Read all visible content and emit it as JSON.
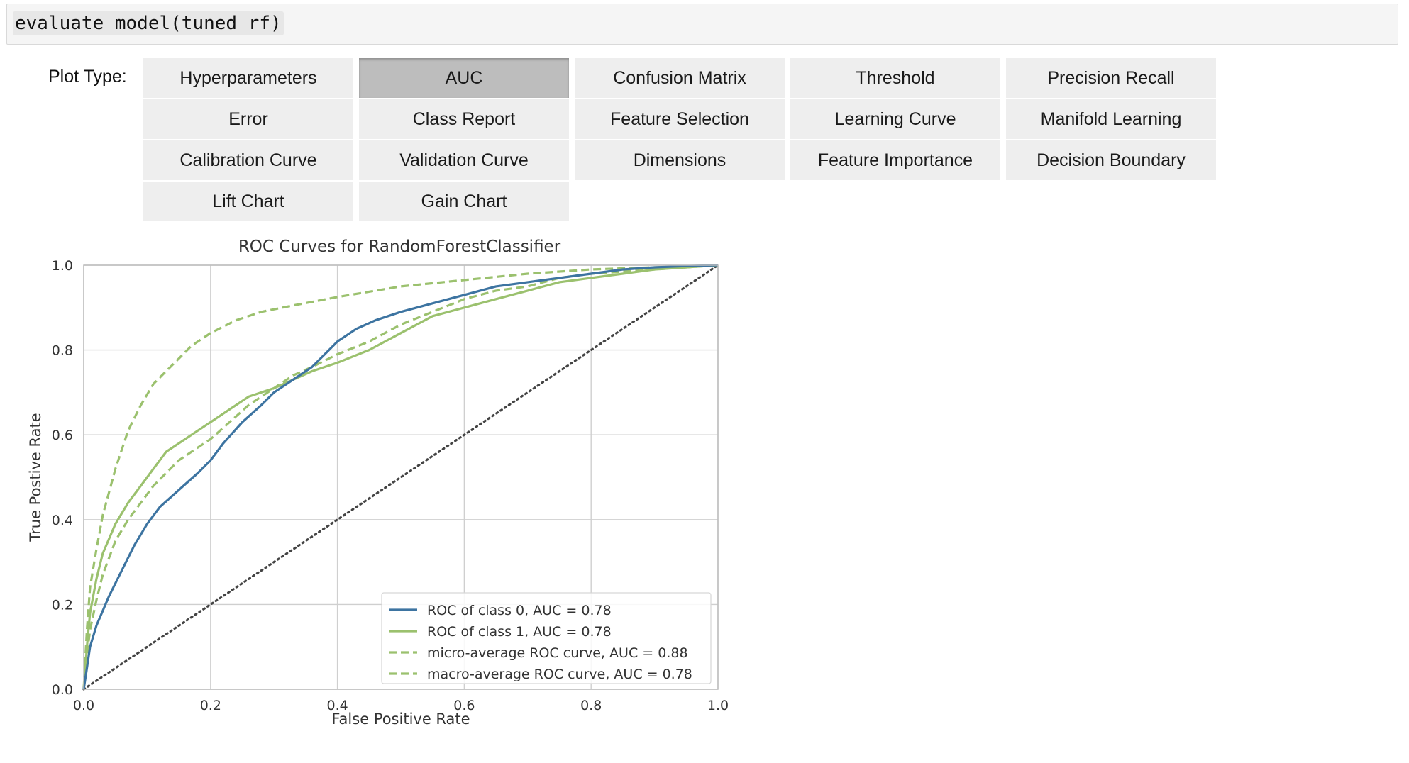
{
  "code_cell": {
    "code": "evaluate_model(tuned_rf)"
  },
  "widget": {
    "label": "Plot Type:",
    "buttons": [
      "Hyperparameters",
      "AUC",
      "Confusion Matrix",
      "Threshold",
      "Precision Recall",
      "Error",
      "Class Report",
      "Feature Selection",
      "Learning Curve",
      "Manifold Learning",
      "Calibration Curve",
      "Validation Curve",
      "Dimensions",
      "Feature Importance",
      "Decision Boundary",
      "Lift Chart",
      "Gain Chart"
    ],
    "active": "AUC"
  },
  "colors": {
    "blue": "#3d74a1",
    "green": "#9bc16e",
    "diag": "#444444",
    "grid": "#cfcfcf"
  },
  "chart_data": {
    "type": "line",
    "title": "ROC Curves for RandomForestClassifier",
    "xlabel": "False Positive Rate",
    "ylabel": "True Postive Rate",
    "xlim": [
      0.0,
      1.0
    ],
    "ylim": [
      0.0,
      1.0
    ],
    "xticks": [
      "0.0",
      "0.2",
      "0.4",
      "0.6",
      "0.8",
      "1.0"
    ],
    "yticks": [
      "0.0",
      "0.2",
      "0.4",
      "0.6",
      "0.8",
      "1.0"
    ],
    "grid": true,
    "legend_position": "lower right",
    "series": [
      {
        "name": "ROC of class 0, AUC = 0.78",
        "color": "#3d74a1",
        "style": "solid",
        "x": [
          0.0,
          0.005,
          0.01,
          0.02,
          0.04,
          0.06,
          0.08,
          0.1,
          0.12,
          0.15,
          0.18,
          0.2,
          0.22,
          0.25,
          0.28,
          0.3,
          0.33,
          0.36,
          0.38,
          0.4,
          0.43,
          0.46,
          0.5,
          0.55,
          0.6,
          0.65,
          0.7,
          0.75,
          0.8,
          0.85,
          0.9,
          0.95,
          1.0
        ],
        "y": [
          0.0,
          0.05,
          0.1,
          0.15,
          0.22,
          0.28,
          0.34,
          0.39,
          0.43,
          0.47,
          0.51,
          0.54,
          0.58,
          0.63,
          0.67,
          0.7,
          0.73,
          0.76,
          0.79,
          0.82,
          0.85,
          0.87,
          0.89,
          0.91,
          0.93,
          0.95,
          0.96,
          0.97,
          0.98,
          0.99,
          0.995,
          0.998,
          1.0
        ]
      },
      {
        "name": "ROC of class 1, AUC = 0.78",
        "color": "#9bc16e",
        "style": "solid",
        "x": [
          0.0,
          0.005,
          0.01,
          0.02,
          0.03,
          0.05,
          0.07,
          0.09,
          0.11,
          0.13,
          0.15,
          0.18,
          0.2,
          0.23,
          0.26,
          0.3,
          0.33,
          0.36,
          0.4,
          0.45,
          0.5,
          0.55,
          0.6,
          0.65,
          0.7,
          0.75,
          0.8,
          0.85,
          0.9,
          0.95,
          1.0
        ],
        "y": [
          0.0,
          0.1,
          0.18,
          0.26,
          0.32,
          0.39,
          0.44,
          0.48,
          0.52,
          0.56,
          0.58,
          0.61,
          0.63,
          0.66,
          0.69,
          0.71,
          0.73,
          0.75,
          0.77,
          0.8,
          0.84,
          0.88,
          0.9,
          0.92,
          0.94,
          0.96,
          0.97,
          0.98,
          0.99,
          0.995,
          1.0
        ]
      },
      {
        "name": "micro-average ROC curve, AUC = 0.88",
        "color": "#9bc16e",
        "style": "dashed",
        "x": [
          0.0,
          0.005,
          0.01,
          0.02,
          0.03,
          0.05,
          0.07,
          0.09,
          0.11,
          0.13,
          0.15,
          0.17,
          0.2,
          0.24,
          0.28,
          0.33,
          0.4,
          0.5,
          0.6,
          0.7,
          0.8,
          0.9,
          1.0
        ],
        "y": [
          0.0,
          0.14,
          0.24,
          0.33,
          0.41,
          0.52,
          0.61,
          0.67,
          0.72,
          0.75,
          0.78,
          0.81,
          0.84,
          0.87,
          0.89,
          0.905,
          0.925,
          0.95,
          0.965,
          0.98,
          0.99,
          0.995,
          1.0
        ]
      },
      {
        "name": "macro-average ROC curve, AUC = 0.78",
        "color": "#9bc16e",
        "style": "dashed",
        "x": [
          0.0,
          0.005,
          0.01,
          0.02,
          0.03,
          0.05,
          0.07,
          0.09,
          0.11,
          0.13,
          0.15,
          0.18,
          0.2,
          0.23,
          0.26,
          0.3,
          0.33,
          0.36,
          0.4,
          0.45,
          0.5,
          0.55,
          0.6,
          0.65,
          0.7,
          0.75,
          0.8,
          0.85,
          0.9,
          0.95,
          1.0
        ],
        "y": [
          0.0,
          0.08,
          0.14,
          0.21,
          0.27,
          0.35,
          0.4,
          0.44,
          0.48,
          0.51,
          0.54,
          0.57,
          0.59,
          0.63,
          0.67,
          0.71,
          0.74,
          0.76,
          0.79,
          0.82,
          0.86,
          0.89,
          0.92,
          0.94,
          0.95,
          0.97,
          0.98,
          0.985,
          0.99,
          0.995,
          1.0
        ]
      }
    ]
  }
}
